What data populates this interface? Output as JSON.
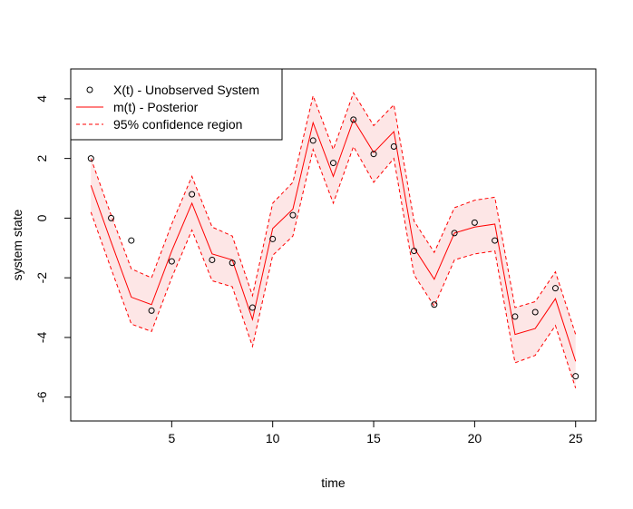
{
  "chart_data": {
    "type": "line",
    "title": "",
    "xlabel": "time",
    "ylabel": "system state",
    "xlim": [
      0,
      26
    ],
    "ylim": [
      -6.8,
      5.0
    ],
    "x_ticks": [
      5,
      10,
      15,
      20,
      25
    ],
    "y_ticks": [
      -6,
      -4,
      -2,
      0,
      2,
      4
    ],
    "grid": false,
    "legend_position": "top-left",
    "x": [
      1,
      2,
      3,
      4,
      5,
      6,
      7,
      8,
      9,
      10,
      11,
      12,
      13,
      14,
      15,
      16,
      17,
      18,
      19,
      20,
      21,
      22,
      23,
      24,
      25
    ],
    "series": [
      {
        "name": "X(t) - Unobserved System",
        "style": "points",
        "color": "#000000",
        "values": [
          2.0,
          0.0,
          -0.75,
          -3.1,
          -1.45,
          0.8,
          -1.4,
          -1.5,
          -3.0,
          -0.7,
          0.1,
          2.6,
          1.85,
          3.3,
          2.15,
          2.4,
          -1.1,
          -2.9,
          -0.5,
          -0.15,
          -0.75,
          -3.3,
          -3.15,
          -2.35,
          -5.3
        ]
      },
      {
        "name": "m(t) - Posterior",
        "style": "solid",
        "color": "#ff0000",
        "values": [
          1.1,
          -0.8,
          -2.65,
          -2.9,
          -1.1,
          0.5,
          -1.2,
          -1.4,
          -3.4,
          -0.35,
          0.3,
          3.2,
          1.4,
          3.3,
          2.2,
          2.9,
          -1.0,
          -2.05,
          -0.5,
          -0.3,
          -0.2,
          -3.9,
          -3.7,
          -2.7,
          -4.8
        ]
      },
      {
        "name": "95% confidence region",
        "style": "dashed",
        "color": "#ff0000",
        "upper": [
          2.0,
          0.1,
          -1.7,
          -2.0,
          -0.2,
          1.4,
          -0.3,
          -0.6,
          -2.6,
          0.5,
          1.2,
          4.1,
          2.3,
          4.2,
          3.1,
          3.8,
          -0.1,
          -1.15,
          0.35,
          0.6,
          0.7,
          -3.0,
          -2.8,
          -1.8,
          -3.9
        ],
        "lower": [
          0.2,
          -1.7,
          -3.55,
          -3.8,
          -2.0,
          -0.4,
          -2.1,
          -2.3,
          -4.3,
          -1.25,
          -0.6,
          2.3,
          0.5,
          2.4,
          1.2,
          2.0,
          -1.9,
          -2.95,
          -1.4,
          -1.2,
          -1.1,
          -4.85,
          -4.6,
          -3.6,
          -5.7
        ]
      }
    ],
    "band_fill_color": "#fde6e6"
  }
}
